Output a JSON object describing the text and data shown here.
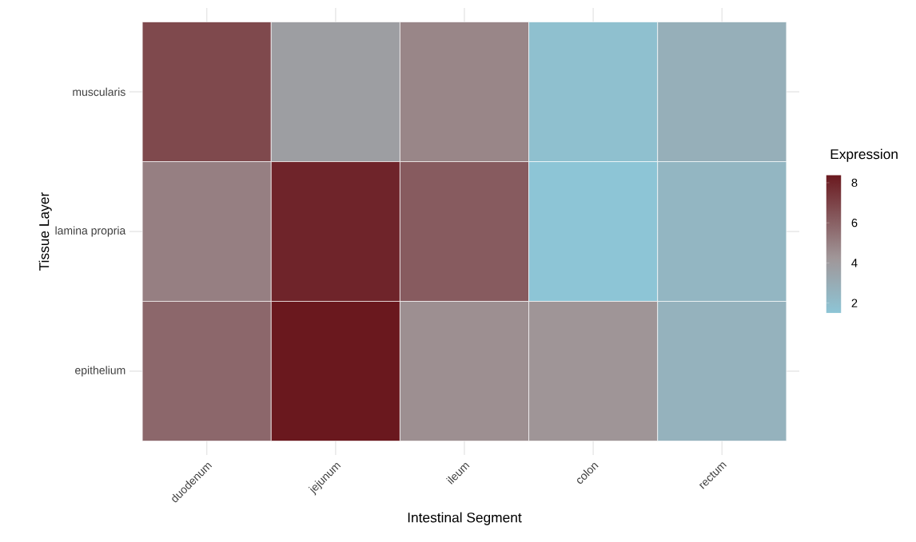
{
  "chart_data": {
    "type": "heatmap",
    "xlabel": "Intestinal Segment",
    "ylabel": "Tissue Layer",
    "clabel": "Expression",
    "categories": [
      "duodenum",
      "jejunum",
      "ileum",
      "colon",
      "rectum"
    ],
    "y_categories": [
      "muscularis",
      "lamina propria",
      "epithelium"
    ],
    "cells": [
      [
        6.8,
        3.8,
        4.8,
        1.8,
        2.8
      ],
      [
        5.0,
        8.0,
        6.2,
        1.5,
        2.4
      ],
      [
        5.8,
        8.4,
        4.5,
        4.3,
        2.6
      ]
    ],
    "clim": [
      1.5,
      8.4
    ],
    "cticks": [
      2,
      4,
      6,
      8
    ],
    "grid": true
  }
}
